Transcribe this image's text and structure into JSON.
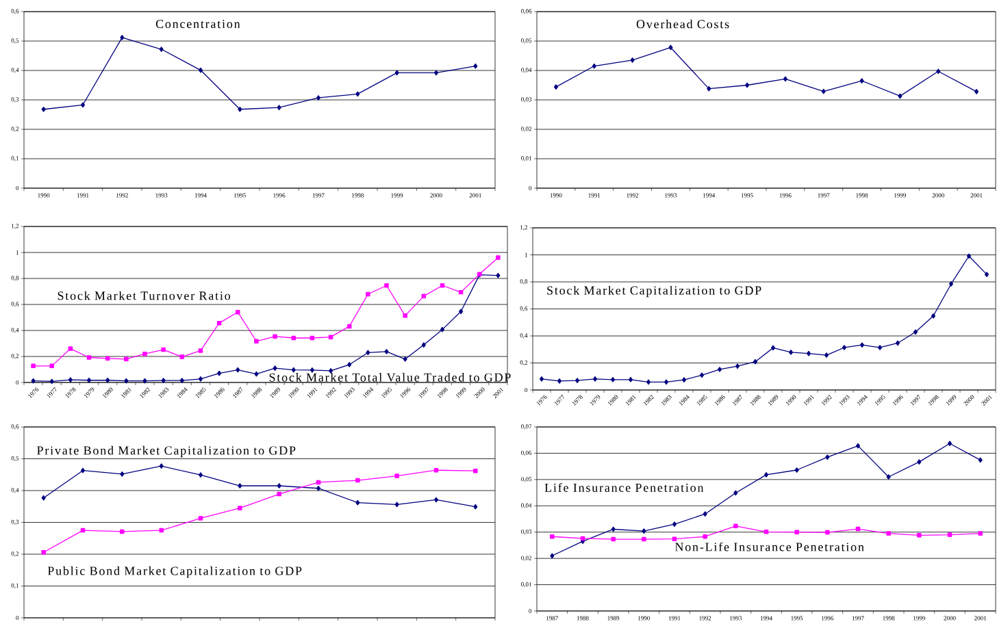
{
  "chart_data": [
    {
      "type": "line",
      "title": "Concentration",
      "categories": [
        "1990",
        "1991",
        "1992",
        "1993",
        "1994",
        "1995",
        "1996",
        "1997",
        "1998",
        "1999",
        "2000",
        "2001"
      ],
      "series": [
        {
          "color": "#000080",
          "marker": "diamond",
          "values": [
            0.268,
            0.283,
            0.512,
            0.472,
            0.401,
            0.268,
            0.274,
            0.307,
            0.32,
            0.392,
            0.392,
            0.415
          ]
        }
      ],
      "ylim": [
        0,
        0.6
      ],
      "yticks": [
        0,
        {
          "value": 0.1,
          "label": "0,1"
        },
        {
          "value": 0.2,
          "label": "0,2"
        },
        {
          "value": 0.3,
          "label": "0,3"
        },
        {
          "value": 0.4,
          "label": "0,4"
        },
        {
          "value": 0.5,
          "label": "0,5"
        },
        {
          "value": 0.6,
          "label": "0,6"
        }
      ],
      "grid": "y"
    },
    {
      "type": "line",
      "title": "Overhead Costs",
      "categories": [
        "1990",
        "1991",
        "1992",
        "1993",
        "1994",
        "1995",
        "1996",
        "1997",
        "1998",
        "1999",
        "2000",
        "2001"
      ],
      "series": [
        {
          "color": "#000080",
          "marker": "diamond",
          "values": [
            0.0344,
            0.0415,
            0.0435,
            0.0478,
            0.0338,
            0.035,
            0.0371,
            0.0329,
            0.0365,
            0.0313,
            0.0397,
            0.0328
          ]
        }
      ],
      "ylim": [
        0,
        0.06
      ],
      "yticks": [
        0,
        {
          "value": 0.01,
          "label": "0,01"
        },
        {
          "value": 0.02,
          "label": "0,02"
        },
        {
          "value": 0.03,
          "label": "0,03"
        },
        {
          "value": 0.04,
          "label": "0,04"
        },
        {
          "value": 0.05,
          "label": "0,05"
        },
        {
          "value": 0.06,
          "label": "0,06"
        }
      ],
      "grid": "y"
    },
    {
      "type": "line",
      "categories": [
        "1976",
        "1977",
        "1978",
        "1979",
        "1980",
        "1981",
        "1982",
        "1983",
        "1984",
        "1985",
        "1986",
        "1987",
        "1988",
        "1989",
        "1990",
        "1991",
        "1992",
        "1993",
        "1994",
        "1995",
        "1996",
        "1997",
        "1998",
        "1999",
        "2000",
        "2001"
      ],
      "series": [
        {
          "name": "Stock Market Total Value Traded to GDP",
          "color": "#000080",
          "marker": "diamond",
          "values": [
            0.012,
            0.008,
            0.02,
            0.017,
            0.017,
            0.012,
            0.012,
            0.015,
            0.015,
            0.027,
            0.07,
            0.097,
            0.065,
            0.11,
            0.097,
            0.095,
            0.09,
            0.137,
            0.23,
            0.237,
            0.18,
            0.289,
            0.407,
            0.546,
            0.828,
            0.823
          ]
        },
        {
          "name": "Stock Market Turnover Ratio",
          "color": "#ff00ff",
          "marker": "square",
          "values": [
            0.127,
            0.127,
            0.26,
            0.192,
            0.185,
            0.18,
            0.22,
            0.252,
            0.197,
            0.245,
            0.457,
            0.541,
            0.317,
            0.354,
            0.342,
            0.342,
            0.349,
            0.432,
            0.679,
            0.746,
            0.514,
            0.664,
            0.746,
            0.694,
            0.833,
            0.961
          ]
        }
      ],
      "ylim": [
        0,
        1.2
      ],
      "yticks": [
        0,
        {
          "value": 0.2,
          "label": "0,2"
        },
        {
          "value": 0.4,
          "label": "0,4"
        },
        {
          "value": 0.6,
          "label": "0,6"
        },
        {
          "value": 0.8,
          "label": "0,8"
        },
        1,
        {
          "value": 1.2,
          "label": "1,2"
        }
      ],
      "grid": "y"
    },
    {
      "type": "line",
      "title": "Stock Market Capitalization to GDP",
      "categories": [
        "1976",
        "1977",
        "1978",
        "1979",
        "1980",
        "1981",
        "1982",
        "1983",
        "1984",
        "1985",
        "1986",
        "1987",
        "1988",
        "1989",
        "1990",
        "1991",
        "1992",
        "1993",
        "1994",
        "1995",
        "1996",
        "1997",
        "1998",
        "1999",
        "2000",
        "2001"
      ],
      "series": [
        {
          "color": "#000080",
          "marker": "diamond",
          "values": [
            0.082,
            0.066,
            0.07,
            0.082,
            0.077,
            0.077,
            0.059,
            0.059,
            0.075,
            0.11,
            0.152,
            0.176,
            0.209,
            0.312,
            0.279,
            0.27,
            0.258,
            0.314,
            0.333,
            0.314,
            0.347,
            0.429,
            0.548,
            0.785,
            0.991,
            0.855
          ]
        }
      ],
      "ylim": [
        0,
        1.2
      ],
      "yticks": [
        0,
        {
          "value": 0.2,
          "label": "0,2"
        },
        {
          "value": 0.4,
          "label": "0,4"
        },
        {
          "value": 0.6,
          "label": "0,6"
        },
        {
          "value": 0.8,
          "label": "0,8"
        },
        1,
        {
          "value": 1.2,
          "label": "1,2"
        }
      ],
      "grid": "y"
    },
    {
      "type": "line",
      "categories": [
        null,
        null,
        null,
        null,
        null,
        null,
        null,
        null,
        null,
        null,
        null,
        null
      ],
      "series": [
        {
          "name": "Private Bond Market Capitalization to GDP",
          "color": "#000080",
          "marker": "diamond",
          "values": [
            0.377,
            0.463,
            0.452,
            0.477,
            0.449,
            0.415,
            0.415,
            0.407,
            0.362,
            0.356,
            0.371,
            0.349
          ]
        },
        {
          "name": "Public Bond Market Capitalization to GDP",
          "color": "#ff00ff",
          "marker": "square",
          "values": [
            0.206,
            0.275,
            0.271,
            0.275,
            0.313,
            0.345,
            0.389,
            0.426,
            0.432,
            0.446,
            0.464,
            0.462
          ]
        }
      ],
      "ylim": [
        0,
        0.6
      ],
      "yticks": [
        0,
        {
          "value": 0.1,
          "label": "0,1"
        },
        {
          "value": 0.2,
          "label": "0,2"
        },
        {
          "value": 0.3,
          "label": "0,3"
        },
        {
          "value": 0.4,
          "label": "0,4"
        },
        {
          "value": 0.5,
          "label": "0,5"
        },
        {
          "value": 0.6,
          "label": "0,6"
        }
      ],
      "grid": "y",
      "tick_labels": "y"
    },
    {
      "type": "line",
      "categories": [
        "1987",
        "1988",
        "1989",
        "1990",
        "1991",
        "1992",
        "1993",
        "1994",
        "1995",
        "1996",
        "1997",
        "1998",
        "1999",
        "2000",
        "2001"
      ],
      "series": [
        {
          "name": "Life Insurance Penetration",
          "color": "#000080",
          "marker": "diamond",
          "values": [
            0.021,
            0.0265,
            0.0311,
            0.0304,
            0.033,
            0.0369,
            0.0449,
            0.0518,
            0.0536,
            0.0585,
            0.0628,
            0.051,
            0.0567,
            0.0637,
            0.0574
          ]
        },
        {
          "name": "Non-Life Insurance Penetration",
          "color": "#ff00ff",
          "marker": "square",
          "values": [
            0.0283,
            0.0276,
            0.0273,
            0.0273,
            0.0274,
            0.0283,
            0.0323,
            0.0301,
            0.03,
            0.0299,
            0.0312,
            0.0295,
            0.0288,
            0.029,
            0.0295
          ]
        }
      ],
      "ylim": [
        0,
        0.07
      ],
      "yticks": [
        0,
        {
          "value": 0.01,
          "label": "0,01"
        },
        {
          "value": 0.02,
          "label": "0,02"
        },
        {
          "value": 0.03,
          "label": "0,03"
        },
        {
          "value": 0.04,
          "label": "0,04"
        },
        {
          "value": 0.05,
          "label": "0,05"
        },
        {
          "value": 0.06,
          "label": "0,06"
        },
        {
          "value": 0.07,
          "label": "0,07"
        }
      ],
      "grid": "y"
    }
  ]
}
